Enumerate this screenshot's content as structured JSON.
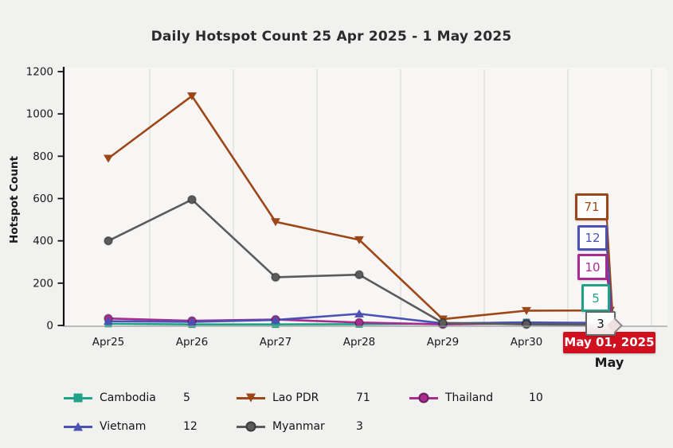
{
  "chart_data": {
    "type": "line",
    "title": "Daily Hotspot Count 25 Apr 2025 - 1 May 2025",
    "xlabel": "",
    "ylabel": "Hotspot Count",
    "ylim": [
      0,
      1200
    ],
    "y_ticks": [
      0,
      200,
      400,
      600,
      800,
      1000,
      1200
    ],
    "categories": [
      "Apr25",
      "Apr26",
      "Apr27",
      "Apr28",
      "Apr29",
      "Apr30",
      "May 01, 2025"
    ],
    "grid": "vertical",
    "legend_position": "bottom",
    "series": [
      {
        "name": "Cambodia",
        "color": "#1fa287",
        "marker": "square",
        "values": [
          8,
          5,
          5,
          6,
          8,
          15,
          5
        ],
        "last_value": 5
      },
      {
        "name": "Lao PDR",
        "color": "#9d4718",
        "marker": "triangle-down",
        "values": [
          790,
          1085,
          490,
          405,
          30,
          70,
          71
        ],
        "last_value": 71
      },
      {
        "name": "Thailand",
        "color": "#a82b8f",
        "marker": "circle",
        "values": [
          33,
          22,
          28,
          14,
          5,
          10,
          10
        ],
        "last_value": 10
      },
      {
        "name": "Vietnam",
        "color": "#4a51b4",
        "marker": "triangle-up",
        "values": [
          20,
          17,
          26,
          55,
          10,
          14,
          12
        ],
        "last_value": 12
      },
      {
        "name": "Myanmar",
        "color": "#5b5b5b",
        "marker": "circle",
        "values": [
          400,
          595,
          228,
          240,
          12,
          5,
          3
        ],
        "last_value": 3
      }
    ]
  },
  "x_axis": {
    "highlight_label": "May 01, 2025",
    "month_label": "May"
  },
  "colors": {
    "background": "#f1f1f0",
    "plot_background": "#f7f6f5",
    "gridline": "#dcdcdc",
    "axis": "#111111",
    "baseline": "#999999",
    "highlight_bg": "#d00f1f",
    "highlight_text": "#ffffff"
  }
}
